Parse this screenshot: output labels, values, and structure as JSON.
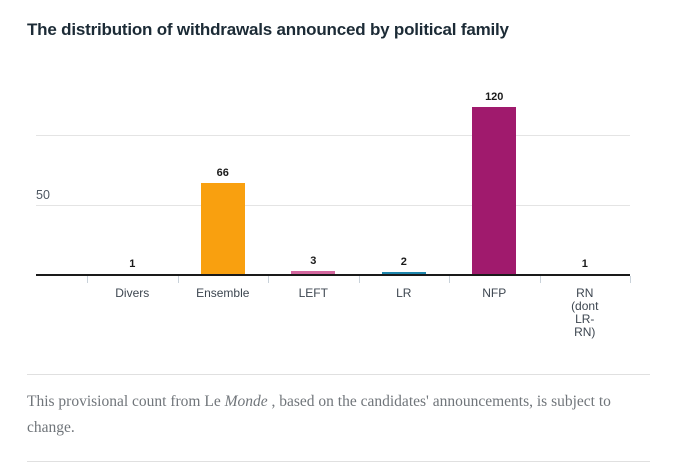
{
  "page": {
    "title": "The distribution of withdrawals announced by political family",
    "footnote": {
      "text_before_italic": "This provisional count from Le ",
      "italic_text": "Monde",
      "text_after_italic": " , based on the candidates' announcements, is subject to change."
    }
  },
  "chart_data": {
    "type": "bar",
    "title": "The distribution of withdrawals announced by political family",
    "categories": [
      "Divers",
      "Ensemble",
      "LEFT",
      "LR",
      "NFP",
      "RN (dont LR-RN)"
    ],
    "category_display_lines": [
      [
        "Divers"
      ],
      [
        "Ensemble"
      ],
      [
        "LEFT"
      ],
      [
        "LR"
      ],
      [
        "NFP"
      ],
      [
        "RN",
        "(dont",
        "LR-",
        "RN)"
      ]
    ],
    "values": [
      1,
      66,
      3,
      2,
      120,
      1
    ],
    "colors": [
      null,
      "#F9A00F",
      "#D4679F",
      "#1E86AD",
      "#A01A6D",
      null
    ],
    "value_label_color": "#1A1A1A",
    "xlabel": "",
    "ylabel": "",
    "ylim": [
      0,
      143
    ],
    "y_gridlines": [
      50,
      100
    ],
    "y_axis_label": "50",
    "grid": true,
    "legend": "none"
  }
}
